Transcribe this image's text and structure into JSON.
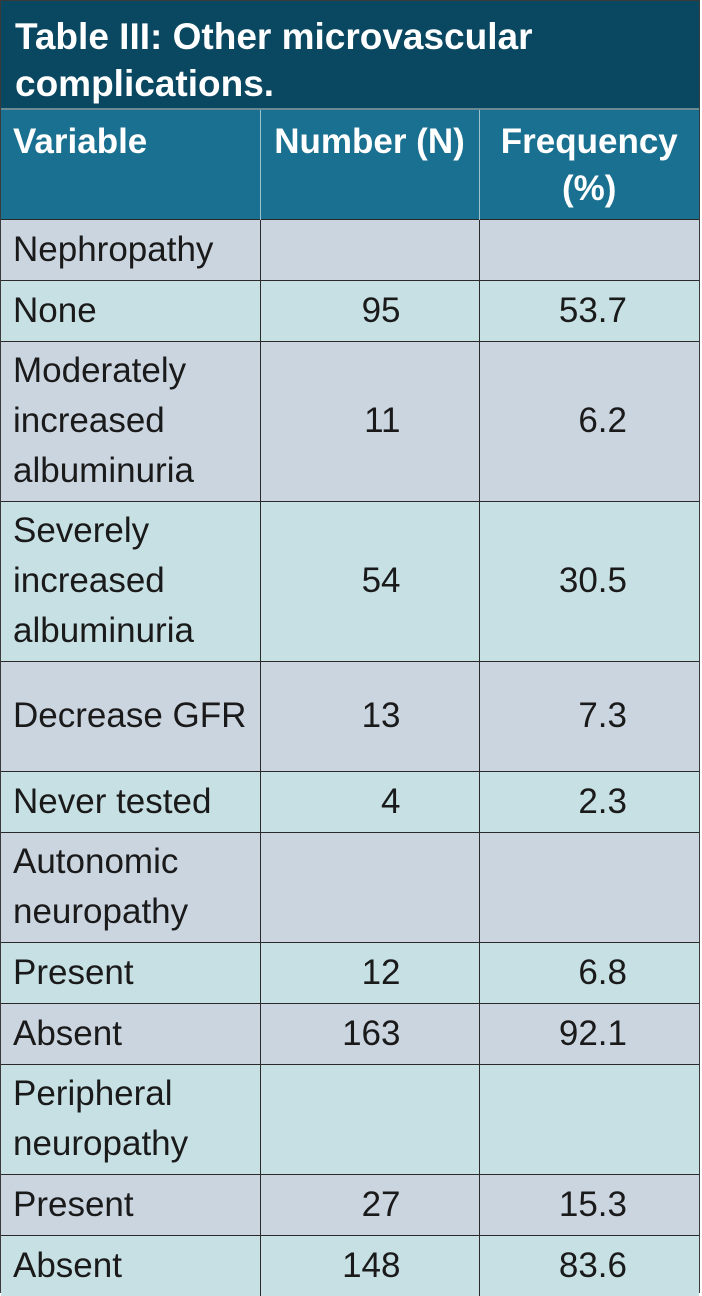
{
  "table": {
    "title": "Table III: Other microvascular complications.",
    "headers": {
      "variable": "Variable",
      "number": "Number (N)",
      "frequency": "Frequency (%)"
    },
    "rows": [
      {
        "variable": "Nephropathy",
        "number": "",
        "frequency": ""
      },
      {
        "variable": "None",
        "number": "95",
        "frequency": "53.7"
      },
      {
        "variable": "Moderately increased albuminuria",
        "number": "11",
        "frequency": "6.2"
      },
      {
        "variable": "Severely increased albuminuria",
        "number": "54",
        "frequency": "30.5"
      },
      {
        "variable": "Decrease GFR",
        "number": "13",
        "frequency": "7.3"
      },
      {
        "variable": "Never tested",
        "number": "4",
        "frequency": "2.3"
      },
      {
        "variable": "Autonomic neuropathy",
        "number": "",
        "frequency": ""
      },
      {
        "variable": "Present",
        "number": "12",
        "frequency": "6.8"
      },
      {
        "variable": "Absent",
        "number": "163",
        "frequency": "92.1"
      },
      {
        "variable": "Peripheral neuropathy",
        "number": "",
        "frequency": ""
      },
      {
        "variable": "Present",
        "number": "27",
        "frequency": "15.3"
      },
      {
        "variable": "Absent",
        "number": "148",
        "frequency": "83.6"
      }
    ]
  },
  "colors": {
    "title_bg": "#0a4760",
    "header_bg": "#1a7090",
    "row_shade_gray": "#cbd5e0",
    "row_shade_teal": "#c7e0e4"
  }
}
